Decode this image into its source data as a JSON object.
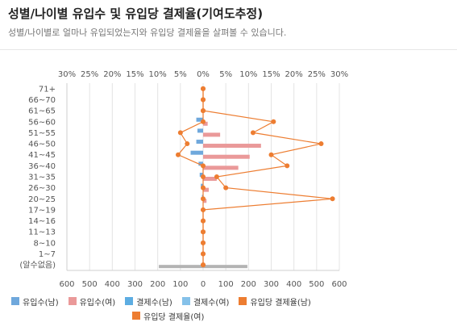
{
  "header": {
    "title": "성별/나이별 유입수 및 유입당 결제율(기여도추정)",
    "subtitle": "성별/나이별로 얼마나 유입되었는지와 유입당 결제율을 살펴볼 수 있습니다."
  },
  "chart_data": {
    "type": "bar",
    "orientation": "horizontal",
    "categories": [
      "71+",
      "66~70",
      "61~65",
      "56~60",
      "51~55",
      "46~50",
      "41~45",
      "36~40",
      "31~35",
      "26~30",
      "20~25",
      "17~19",
      "14~16",
      "11~13",
      "8~10",
      "1~7",
      "(알수없음)"
    ],
    "top_axis_ticks": [
      "30%",
      "25%",
      "20%",
      "15%",
      "10%",
      "5%",
      "0%",
      "5%",
      "10%",
      "15%",
      "20%",
      "25%",
      "30%"
    ],
    "bottom_axis_ticks": [
      "600",
      "500",
      "400",
      "300",
      "200",
      "100",
      "0",
      "100",
      "200",
      "300",
      "400",
      "500",
      "600"
    ],
    "xlim_count": [
      -600,
      600
    ],
    "xlim_rate": [
      -30,
      30
    ],
    "grid": true,
    "legend_position": "bottom",
    "series": [
      {
        "name": "유입수(남)",
        "color": "#6fa8dc",
        "axis": "count",
        "values": [
          0,
          0,
          0,
          -30,
          -25,
          -30,
          -55,
          -20,
          -15,
          -10,
          -5,
          0,
          0,
          0,
          0,
          0,
          -195
        ]
      },
      {
        "name": "유입수(여)",
        "color": "#ea9999",
        "axis": "count",
        "values": [
          0,
          0,
          0,
          20,
          75,
          255,
          205,
          155,
          60,
          25,
          15,
          0,
          0,
          0,
          0,
          0,
          195
        ]
      },
      {
        "name": "결제수(남)",
        "color": "#5dade2",
        "axis": "count",
        "values": [
          0,
          0,
          0,
          0,
          0,
          0,
          0,
          0,
          0,
          0,
          0,
          0,
          0,
          0,
          0,
          0,
          0
        ]
      },
      {
        "name": "결제수(여)",
        "color": "#85c1e9",
        "axis": "count",
        "values": [
          0,
          0,
          0,
          0,
          0,
          0,
          0,
          0,
          0,
          0,
          0,
          0,
          0,
          0,
          0,
          0,
          0
        ]
      },
      {
        "name": "유입당 결제율(남)",
        "color": "#ed7d31",
        "axis": "rate",
        "values": [
          0,
          0,
          0,
          0,
          -5,
          -3.5,
          -5.5,
          0,
          0,
          0,
          0,
          0,
          0,
          0,
          0,
          0,
          0
        ]
      },
      {
        "name": "유입당 결제율(여)",
        "color": "#ed7d31",
        "axis": "rate",
        "values": [
          0,
          0,
          0,
          15.5,
          11,
          26,
          15,
          18.5,
          3,
          5,
          28.5,
          0,
          0,
          0,
          0,
          0,
          0
        ]
      }
    ]
  }
}
